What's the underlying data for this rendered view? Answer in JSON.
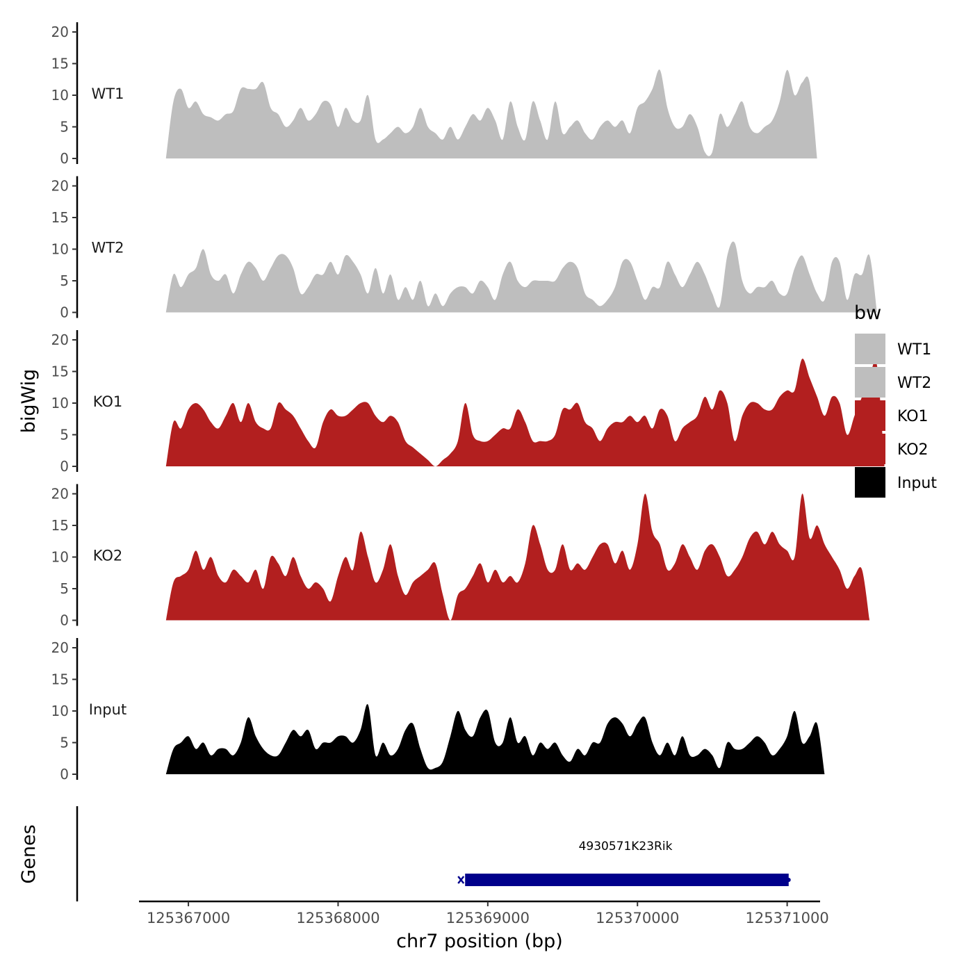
{
  "chart_data": {
    "type": "area",
    "xlabel": "chr7 position (bp)",
    "ylabel": "bigWig",
    "genes_label": "Genes",
    "xlim": [
      125366670,
      125371220
    ],
    "x_ticks": [
      125367000,
      125368000,
      125369000,
      125370000,
      125371000
    ],
    "x_tick_labels": [
      "125367000",
      "125368000",
      "125369000",
      "125370000",
      "125371000"
    ],
    "ylim": [
      0,
      21
    ],
    "y_ticks": [
      0,
      5,
      10,
      15,
      20
    ],
    "y_tick_labels": [
      "0",
      "5",
      "10",
      "15",
      "20"
    ],
    "legend": {
      "title": "bw",
      "position": "right",
      "entries": [
        {
          "label": "WT1",
          "color": "#bebebe"
        },
        {
          "label": "WT2",
          "color": "#bebebe"
        },
        {
          "label": "KO1",
          "color": "#b21f1f"
        },
        {
          "label": "KO2",
          "color": "#b21f1f"
        },
        {
          "label": "Input",
          "color": "#000000"
        }
      ]
    },
    "x_start": 125366850,
    "x_step": 50,
    "series": [
      {
        "name": "WT1",
        "color": "#bebebe",
        "values": [
          0,
          9,
          11,
          8,
          9,
          7,
          6.5,
          6,
          7,
          7.5,
          11,
          11,
          11,
          12,
          8,
          7,
          5,
          6,
          8,
          6,
          7,
          9,
          8.5,
          5,
          8,
          6,
          6,
          10,
          3,
          3,
          4,
          5,
          4,
          5,
          8,
          5,
          4,
          3,
          5,
          3,
          5,
          7,
          6,
          8,
          6,
          3,
          9,
          5,
          3,
          9,
          6,
          3,
          9,
          4,
          5,
          6,
          4,
          3,
          5,
          6,
          5,
          6,
          4,
          8,
          9,
          11,
          14,
          8,
          5,
          5,
          7,
          5,
          1,
          1,
          7,
          5,
          7,
          9,
          5,
          4,
          5,
          6,
          9,
          14,
          10,
          12,
          12,
          0
        ]
      },
      {
        "name": "WT2",
        "color": "#bebebe",
        "values": [
          0,
          6,
          4,
          6,
          7,
          10,
          6,
          5,
          6,
          3,
          6,
          8,
          7,
          5,
          7,
          9,
          9,
          7,
          3,
          4,
          6,
          6,
          8,
          6,
          9,
          8,
          6,
          3,
          7,
          3,
          6,
          2,
          4,
          2,
          5,
          1,
          3,
          1,
          3,
          4,
          4,
          3,
          5,
          4,
          2,
          6,
          8,
          5,
          4,
          5,
          5,
          5,
          5,
          7,
          8,
          7,
          3,
          2,
          1,
          2,
          4,
          8,
          8,
          5,
          2,
          4,
          4,
          8,
          6,
          4,
          6,
          8,
          6,
          3,
          1,
          9,
          11,
          5,
          3,
          4,
          4,
          5,
          3,
          3,
          7,
          9,
          6,
          3,
          2,
          8,
          8,
          2,
          6,
          6,
          9,
          0
        ]
      },
      {
        "name": "KO1",
        "color": "#b21f1f",
        "values": [
          0,
          7,
          6,
          9,
          10,
          9,
          7,
          6,
          8,
          10,
          7,
          10,
          7,
          6,
          6,
          10,
          9,
          8,
          6,
          4,
          3,
          7,
          9,
          8,
          8,
          9,
          10,
          10,
          8,
          7,
          8,
          7,
          4,
          3,
          2,
          1,
          0,
          1,
          2,
          4,
          10,
          5,
          4,
          4,
          5,
          6,
          6,
          9,
          7,
          4,
          4,
          4,
          5,
          9,
          9,
          10,
          7,
          6,
          4,
          6,
          7,
          7,
          8,
          7,
          8,
          6,
          9,
          8,
          4,
          6,
          7,
          8,
          11,
          9,
          12,
          10,
          4,
          8,
          10,
          10,
          9,
          9,
          11,
          12,
          12,
          17,
          14,
          11,
          8,
          11,
          10,
          5,
          8,
          11,
          14,
          16,
          0
        ]
      },
      {
        "name": "KO2",
        "color": "#b21f1f",
        "values": [
          0,
          6,
          7,
          8,
          11,
          8,
          10,
          7,
          6,
          8,
          7,
          6,
          8,
          5,
          10,
          9,
          7,
          10,
          7,
          5,
          6,
          5,
          3,
          7,
          10,
          8,
          14,
          10,
          6,
          8,
          12,
          7,
          4,
          6,
          7,
          8,
          9,
          4,
          0,
          4,
          5,
          7,
          9,
          6,
          8,
          6,
          7,
          6,
          9,
          15,
          12,
          8,
          8,
          12,
          8,
          9,
          8,
          10,
          12,
          12,
          9,
          11,
          8,
          12,
          20,
          14,
          12,
          8,
          9,
          12,
          10,
          8,
          11,
          12,
          10,
          7,
          8,
          10,
          13,
          14,
          12,
          14,
          12,
          11,
          10,
          20,
          13,
          15,
          12,
          10,
          8,
          5,
          7,
          8,
          0
        ]
      },
      {
        "name": "Input",
        "color": "#000000",
        "values": [
          0,
          4,
          5,
          6,
          4,
          5,
          3,
          4,
          4,
          3,
          5,
          9,
          6,
          4,
          3,
          3,
          5,
          7,
          6,
          7,
          4,
          5,
          5,
          6,
          6,
          5,
          7,
          11,
          3,
          5,
          3,
          4,
          7,
          8,
          4,
          1,
          1,
          2,
          6,
          10,
          7,
          6,
          9,
          10,
          5,
          5,
          9,
          5,
          6,
          3,
          5,
          4,
          5,
          3,
          2,
          4,
          3,
          5,
          5,
          8,
          9,
          8,
          6,
          8,
          9,
          5,
          3,
          5,
          3,
          6,
          3,
          3,
          4,
          3,
          1,
          5,
          4,
          4,
          5,
          6,
          5,
          3,
          4,
          6,
          10,
          5,
          6,
          8,
          0
        ]
      }
    ],
    "gene": {
      "name": "4930571K23Rik",
      "start": 125368830,
      "end": 125371010,
      "strand": "-",
      "color": "#00008b"
    }
  }
}
